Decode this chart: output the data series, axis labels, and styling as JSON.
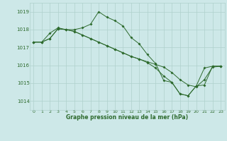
{
  "line1": {
    "x": [
      0,
      1,
      2,
      3,
      4,
      5,
      6,
      7,
      8,
      9,
      10,
      11,
      12,
      13,
      14,
      15,
      16,
      17,
      18,
      19,
      20,
      21,
      22,
      23
    ],
    "y": [
      1017.3,
      1017.3,
      1017.8,
      1018.1,
      1018.0,
      1018.0,
      1018.1,
      1018.3,
      1019.0,
      1018.7,
      1018.5,
      1018.2,
      1017.55,
      1017.2,
      1016.6,
      1016.1,
      1015.15,
      1015.05,
      1014.4,
      1014.3,
      1014.85,
      1015.85,
      1015.95,
      1015.95
    ]
  },
  "line2": {
    "x": [
      0,
      1,
      2,
      3,
      4,
      5,
      6,
      7,
      8,
      9,
      10,
      11,
      12,
      13,
      14,
      15,
      16,
      17,
      18,
      19,
      20,
      21,
      22,
      23
    ],
    "y": [
      1017.3,
      1017.3,
      1017.5,
      1018.05,
      1018.0,
      1017.9,
      1017.7,
      1017.5,
      1017.3,
      1017.1,
      1016.9,
      1016.7,
      1016.5,
      1016.35,
      1016.2,
      1016.05,
      1015.9,
      1015.6,
      1015.2,
      1014.9,
      1014.8,
      1015.2,
      1015.9,
      1015.95
    ]
  },
  "line3": {
    "x": [
      0,
      1,
      2,
      3,
      4,
      5,
      6,
      7,
      8,
      9,
      10,
      11,
      12,
      13,
      14,
      15,
      16,
      17,
      18,
      19,
      20,
      21,
      22,
      23
    ],
    "y": [
      1017.3,
      1017.3,
      1017.5,
      1018.05,
      1018.0,
      1017.9,
      1017.7,
      1017.5,
      1017.3,
      1017.1,
      1016.9,
      1016.7,
      1016.5,
      1016.35,
      1016.15,
      1015.85,
      1015.4,
      1015.05,
      1014.4,
      1014.3,
      1014.85,
      1014.9,
      1015.95,
      1015.95
    ]
  },
  "line_color": "#2d6a2d",
  "bg_color": "#cde8e8",
  "grid_color": "#afd0cc",
  "text_color": "#2d6a2d",
  "xlabel": "Graphe pression niveau de la mer (hPa)",
  "ylim": [
    1013.5,
    1019.5
  ],
  "yticks": [
    1014,
    1015,
    1016,
    1017,
    1018,
    1019
  ],
  "xticks": [
    0,
    1,
    2,
    3,
    4,
    5,
    6,
    7,
    8,
    9,
    10,
    11,
    12,
    13,
    14,
    15,
    16,
    17,
    18,
    19,
    20,
    21,
    22,
    23
  ],
  "xlim": [
    -0.5,
    23.5
  ]
}
